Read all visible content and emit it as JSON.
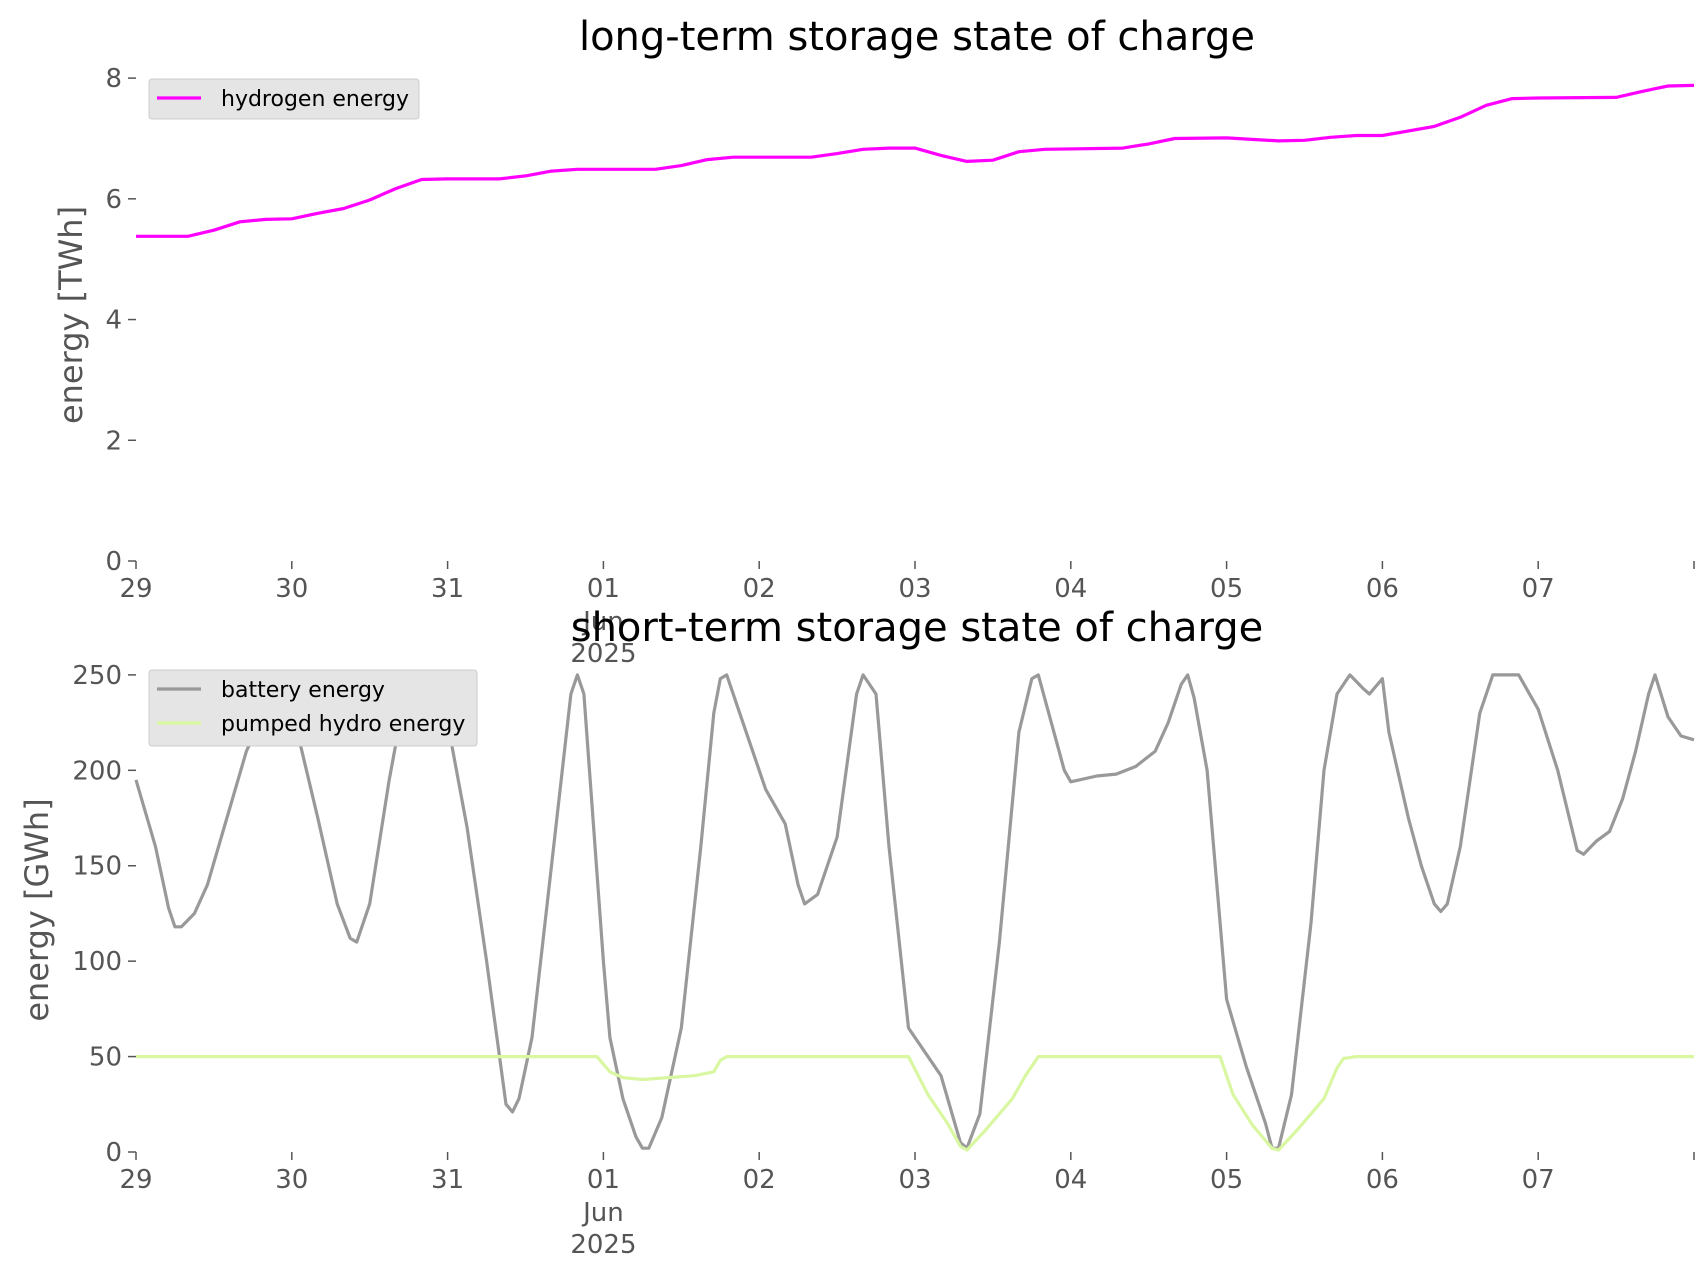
{
  "chart_data": [
    {
      "type": "line",
      "title": "long-term storage state of charge",
      "ylabel": "energy [TWh]",
      "xlabel": "",
      "x_unit": "days",
      "x_range": [
        "2025-05-29",
        "2025-06-08"
      ],
      "ylim": [
        0,
        8.3
      ],
      "yticks": [
        0,
        2,
        4,
        6,
        8
      ],
      "xticks": [
        "29",
        "30",
        "31",
        "01",
        "02",
        "03",
        "04",
        "05",
        "06",
        "07",
        ""
      ],
      "xtick_month": "Jun",
      "xtick_year": "2025",
      "legend_position": "upper left",
      "grid": false,
      "series": [
        {
          "name": "hydrogen energy",
          "color": "#ff00ff",
          "points": [
            [
              "2025-05-29T00:00",
              5.38
            ],
            [
              "2025-05-29T08:00",
              5.38
            ],
            [
              "2025-05-29T12:00",
              5.48
            ],
            [
              "2025-05-29T16:00",
              5.62
            ],
            [
              "2025-05-29T20:00",
              5.66
            ],
            [
              "2025-05-30T00:00",
              5.67
            ],
            [
              "2025-05-30T04:00",
              5.76
            ],
            [
              "2025-05-30T08:00",
              5.84
            ],
            [
              "2025-05-30T12:00",
              5.98
            ],
            [
              "2025-05-30T16:00",
              6.17
            ],
            [
              "2025-05-30T20:00",
              6.32
            ],
            [
              "2025-05-31T00:00",
              6.33
            ],
            [
              "2025-05-31T08:00",
              6.33
            ],
            [
              "2025-05-31T12:00",
              6.38
            ],
            [
              "2025-05-31T16:00",
              6.46
            ],
            [
              "2025-05-31T20:00",
              6.49
            ],
            [
              "2025-06-01T08:00",
              6.49
            ],
            [
              "2025-06-01T12:00",
              6.55
            ],
            [
              "2025-06-01T16:00",
              6.65
            ],
            [
              "2025-06-01T20:00",
              6.69
            ],
            [
              "2025-06-02T08:00",
              6.69
            ],
            [
              "2025-06-02T12:00",
              6.75
            ],
            [
              "2025-06-02T16:00",
              6.82
            ],
            [
              "2025-06-02T20:00",
              6.84
            ],
            [
              "2025-06-03T00:00",
              6.84
            ],
            [
              "2025-06-03T04:00",
              6.72
            ],
            [
              "2025-06-03T08:00",
              6.62
            ],
            [
              "2025-06-03T12:00",
              6.64
            ],
            [
              "2025-06-03T16:00",
              6.78
            ],
            [
              "2025-06-03T20:00",
              6.82
            ],
            [
              "2025-06-04T08:00",
              6.84
            ],
            [
              "2025-06-04T12:00",
              6.91
            ],
            [
              "2025-06-04T16:00",
              7.0
            ],
            [
              "2025-06-05T00:00",
              7.01
            ],
            [
              "2025-06-05T08:00",
              6.96
            ],
            [
              "2025-06-05T12:00",
              6.97
            ],
            [
              "2025-06-05T16:00",
              7.02
            ],
            [
              "2025-06-05T20:00",
              7.05
            ],
            [
              "2025-06-06T00:00",
              7.05
            ],
            [
              "2025-06-06T08:00",
              7.2
            ],
            [
              "2025-06-06T12:00",
              7.35
            ],
            [
              "2025-06-06T16:00",
              7.55
            ],
            [
              "2025-06-06T20:00",
              7.66
            ],
            [
              "2025-06-07T00:00",
              7.67
            ],
            [
              "2025-06-07T12:00",
              7.68
            ],
            [
              "2025-06-07T16:00",
              7.78
            ],
            [
              "2025-06-07T20:00",
              7.87
            ],
            [
              "2025-06-08T00:00",
              7.88
            ]
          ]
        }
      ]
    },
    {
      "type": "line",
      "title": "short-term storage state of charge",
      "ylabel": "energy [GWh]",
      "xlabel": "",
      "x_unit": "days",
      "x_range": [
        "2025-05-29",
        "2025-06-08"
      ],
      "ylim": [
        0,
        262
      ],
      "yticks": [
        0,
        50,
        100,
        150,
        200,
        250
      ],
      "xticks": [
        "29",
        "30",
        "31",
        "01",
        "02",
        "03",
        "04",
        "05",
        "06",
        "07",
        ""
      ],
      "xtick_month": "Jun",
      "xtick_year": "2025",
      "legend_position": "upper left",
      "grid": false,
      "series": [
        {
          "name": "battery energy",
          "color": "#999999",
          "points": [
            [
              "2025-05-29T00:00",
              195
            ],
            [
              "2025-05-29T03:00",
              160
            ],
            [
              "2025-05-29T05:00",
              128
            ],
            [
              "2025-05-29T06:00",
              118
            ],
            [
              "2025-05-29T07:00",
              118
            ],
            [
              "2025-05-29T09:00",
              125
            ],
            [
              "2025-05-29T11:00",
              140
            ],
            [
              "2025-05-29T14:00",
              175
            ],
            [
              "2025-05-29T17:00",
              210
            ],
            [
              "2025-05-29T20:00",
              232
            ],
            [
              "2025-05-29T23:00",
              240
            ],
            [
              "2025-05-30T01:00",
              218
            ],
            [
              "2025-05-30T04:00",
              175
            ],
            [
              "2025-05-30T07:00",
              130
            ],
            [
              "2025-05-30T09:00",
              112
            ],
            [
              "2025-05-30T10:00",
              110
            ],
            [
              "2025-05-30T12:00",
              130
            ],
            [
              "2025-05-30T15:00",
              195
            ],
            [
              "2025-05-30T18:00",
              250
            ],
            [
              "2025-05-30T22:00",
              250
            ],
            [
              "2025-05-31T00:00",
              225
            ],
            [
              "2025-05-31T03:00",
              170
            ],
            [
              "2025-05-31T06:00",
              100
            ],
            [
              "2025-05-31T09:00",
              25
            ],
            [
              "2025-05-31T10:00",
              21
            ],
            [
              "2025-05-31T11:00",
              28
            ],
            [
              "2025-05-31T13:00",
              60
            ],
            [
              "2025-05-31T16:00",
              150
            ],
            [
              "2025-05-31T19:00",
              240
            ],
            [
              "2025-05-31T20:00",
              250
            ],
            [
              "2025-05-31T21:00",
              240
            ],
            [
              "2025-06-01T00:00",
              100
            ],
            [
              "2025-06-01T01:00",
              60
            ],
            [
              "2025-06-01T03:00",
              28
            ],
            [
              "2025-06-01T05:00",
              8
            ],
            [
              "2025-06-01T06:00",
              2
            ],
            [
              "2025-06-01T07:00",
              2
            ],
            [
              "2025-06-01T09:00",
              18
            ],
            [
              "2025-06-01T12:00",
              65
            ],
            [
              "2025-06-01T15:00",
              160
            ],
            [
              "2025-06-01T17:00",
              230
            ],
            [
              "2025-06-01T18:00",
              248
            ],
            [
              "2025-06-01T19:00",
              250
            ],
            [
              "2025-06-01T22:00",
              220
            ],
            [
              "2025-06-02T01:00",
              190
            ],
            [
              "2025-06-02T04:00",
              172
            ],
            [
              "2025-06-02T06:00",
              140
            ],
            [
              "2025-06-02T07:00",
              130
            ],
            [
              "2025-06-02T09:00",
              135
            ],
            [
              "2025-06-02T12:00",
              165
            ],
            [
              "2025-06-02T15:00",
              240
            ],
            [
              "2025-06-02T16:00",
              250
            ],
            [
              "2025-06-02T18:00",
              240
            ],
            [
              "2025-06-02T20:00",
              160
            ],
            [
              "2025-06-02T23:00",
              65
            ],
            [
              "2025-06-03T04:00",
              40
            ],
            [
              "2025-06-03T07:00",
              5
            ],
            [
              "2025-06-03T08:00",
              2
            ],
            [
              "2025-06-03T10:00",
              20
            ],
            [
              "2025-06-03T13:00",
              110
            ],
            [
              "2025-06-03T16:00",
              220
            ],
            [
              "2025-06-03T18:00",
              248
            ],
            [
              "2025-06-03T19:00",
              250
            ],
            [
              "2025-06-03T21:00",
              225
            ],
            [
              "2025-06-03T23:00",
              200
            ],
            [
              "2025-06-04T00:00",
              194
            ],
            [
              "2025-06-04T04:00",
              197
            ],
            [
              "2025-06-04T07:00",
              198
            ],
            [
              "2025-06-04T10:00",
              202
            ],
            [
              "2025-06-04T13:00",
              210
            ],
            [
              "2025-06-04T15:00",
              225
            ],
            [
              "2025-06-04T17:00",
              245
            ],
            [
              "2025-06-04T18:00",
              250
            ],
            [
              "2025-06-04T19:00",
              238
            ],
            [
              "2025-06-04T21:00",
              200
            ],
            [
              "2025-06-05T00:00",
              80
            ],
            [
              "2025-06-05T03:00",
              45
            ],
            [
              "2025-06-05T06:00",
              15
            ],
            [
              "2025-06-05T07:00",
              2
            ],
            [
              "2025-06-05T08:00",
              2
            ],
            [
              "2025-06-05T10:00",
              30
            ],
            [
              "2025-06-05T13:00",
              120
            ],
            [
              "2025-06-05T15:00",
              200
            ],
            [
              "2025-06-05T17:00",
              240
            ],
            [
              "2025-06-05T19:00",
              250
            ],
            [
              "2025-06-05T21:00",
              243
            ],
            [
              "2025-06-05T22:00",
              240
            ],
            [
              "2025-06-06T00:00",
              248
            ],
            [
              "2025-06-06T01:00",
              220
            ],
            [
              "2025-06-06T04:00",
              175
            ],
            [
              "2025-06-06T06:00",
              150
            ],
            [
              "2025-06-06T08:00",
              130
            ],
            [
              "2025-06-06T09:00",
              126
            ],
            [
              "2025-06-06T10:00",
              130
            ],
            [
              "2025-06-06T12:00",
              160
            ],
            [
              "2025-06-06T15:00",
              230
            ],
            [
              "2025-06-06T17:00",
              250
            ],
            [
              "2025-06-06T21:00",
              250
            ],
            [
              "2025-06-07T00:00",
              232
            ],
            [
              "2025-06-07T03:00",
              200
            ],
            [
              "2025-06-07T05:00",
              172
            ],
            [
              "2025-06-07T06:00",
              158
            ],
            [
              "2025-06-07T07:00",
              156
            ],
            [
              "2025-06-07T09:00",
              163
            ],
            [
              "2025-06-07T11:00",
              168
            ],
            [
              "2025-06-07T13:00",
              185
            ],
            [
              "2025-06-07T15:00",
              210
            ],
            [
              "2025-06-07T17:00",
              240
            ],
            [
              "2025-06-07T18:00",
              250
            ],
            [
              "2025-06-07T20:00",
              228
            ],
            [
              "2025-06-07T22:00",
              218
            ],
            [
              "2025-06-08T00:00",
              216
            ]
          ]
        },
        {
          "name": "pumped hydro energy",
          "color": "#d9f7a1",
          "points": [
            [
              "2025-05-29T00:00",
              50
            ],
            [
              "2025-05-31T23:00",
              50
            ],
            [
              "2025-06-01T01:00",
              42
            ],
            [
              "2025-06-01T03:00",
              39
            ],
            [
              "2025-06-01T06:00",
              38
            ],
            [
              "2025-06-01T10:00",
              39
            ],
            [
              "2025-06-01T14:00",
              40
            ],
            [
              "2025-06-01T17:00",
              42
            ],
            [
              "2025-06-01T18:00",
              48
            ],
            [
              "2025-06-01T19:00",
              50
            ],
            [
              "2025-06-02T23:00",
              50
            ],
            [
              "2025-06-03T02:00",
              30
            ],
            [
              "2025-06-03T05:00",
              15
            ],
            [
              "2025-06-03T07:00",
              3
            ],
            [
              "2025-06-03T08:00",
              1
            ],
            [
              "2025-06-03T11:00",
              12
            ],
            [
              "2025-06-03T15:00",
              28
            ],
            [
              "2025-06-03T17:00",
              40
            ],
            [
              "2025-06-03T19:00",
              50
            ],
            [
              "2025-06-04T23:00",
              50
            ],
            [
              "2025-06-05T01:00",
              30
            ],
            [
              "2025-06-05T04:00",
              14
            ],
            [
              "2025-06-05T07:00",
              2
            ],
            [
              "2025-06-05T08:00",
              1
            ],
            [
              "2025-06-05T11:00",
              12
            ],
            [
              "2025-06-05T15:00",
              28
            ],
            [
              "2025-06-05T17:00",
              44
            ],
            [
              "2025-06-05T18:00",
              49
            ],
            [
              "2025-06-05T20:00",
              50
            ],
            [
              "2025-06-08T00:00",
              50
            ]
          ]
        }
      ]
    }
  ]
}
